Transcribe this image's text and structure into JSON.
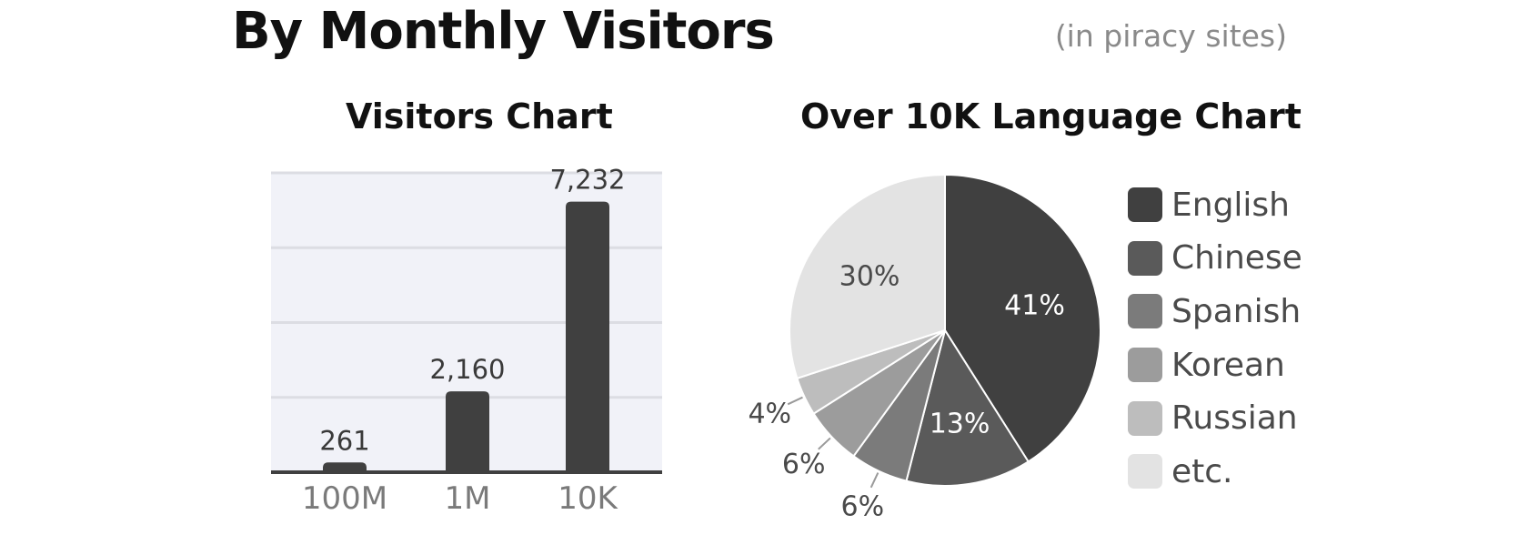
{
  "header": {
    "title": "By Monthly Visitors",
    "note": "(in piracy sites)"
  },
  "chart_data": [
    {
      "type": "bar",
      "title": "Visitors Chart",
      "categories": [
        "100M",
        "1M",
        "10K"
      ],
      "values": [
        261,
        2160,
        7232
      ],
      "value_labels": [
        "261",
        "2,160",
        "7,232"
      ],
      "ylim": [
        0,
        8000
      ],
      "grid": true,
      "bar_color": "#404040",
      "plot_background": "#f1f2f8",
      "gridline_color": "#dcdde3"
    },
    {
      "type": "pie",
      "title": "Over 10K Language Chart",
      "legend_position": "right",
      "slices": [
        {
          "label": "English",
          "value": 41,
          "value_label": "41%",
          "color": "#404040"
        },
        {
          "label": "Chinese",
          "value": 13,
          "value_label": "13%",
          "color": "#5a5a5a"
        },
        {
          "label": "Spanish",
          "value": 6,
          "value_label": "6%",
          "color": "#7b7b7b"
        },
        {
          "label": "Korean",
          "value": 6,
          "value_label": "6%",
          "color": "#9c9c9c"
        },
        {
          "label": "Russian",
          "value": 4,
          "value_label": "4%",
          "color": "#bdbdbd"
        },
        {
          "label": "etc.",
          "value": 30,
          "value_label": "30%",
          "color": "#e3e3e3"
        }
      ]
    }
  ]
}
